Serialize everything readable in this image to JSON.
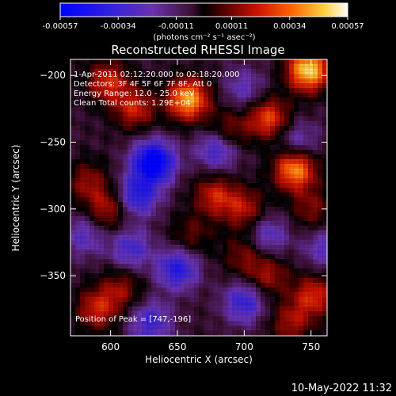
{
  "chart_data": {
    "type": "heatmap",
    "title": "Reconstructed RHESSI Image",
    "xlabel": "Heliocentric X (arcsec)",
    "ylabel": "Heliocentric Y (arcsec)",
    "xlim": [
      570,
      762
    ],
    "ylim": [
      -395,
      -188
    ],
    "x_ticks": [
      600,
      650,
      700,
      750
    ],
    "y_ticks": [
      -200,
      -250,
      -300,
      -350
    ],
    "colorbar": {
      "range": [
        -0.00057,
        0.00057
      ],
      "ticks": [
        -0.00057,
        -0.00034,
        -0.00011,
        0.00011,
        0.00034,
        0.00057
      ],
      "tick_labels": [
        "-0.00057",
        "-0.00034",
        "-0.00011",
        "0.00011",
        "0.00034",
        "0.00057"
      ],
      "units": "(photons cm⁻² s⁻¹ asec⁻²)"
    },
    "annotations": {
      "time": "1-Apr-2011 02:12:20.000 to 02:18:20.000",
      "detectors": "Detectors: 3F 4F 5F 6F 7F 8F, Att 0",
      "energy": "Energy Range: 12.0 - 25.0 keV",
      "method": "Clean     Total counts: 1.29E+04",
      "peak": "Position of Peak = [747,-196]"
    },
    "footer_timestamp": "10-May-2022 11:32",
    "hot_spots": [
      {
        "x": 748,
        "y": -196,
        "value": 0.00057
      },
      {
        "x": 658,
        "y": -218,
        "value": 0.0005
      },
      {
        "x": 738,
        "y": -270,
        "value": 0.00048
      },
      {
        "x": 718,
        "y": -232,
        "value": 0.00035
      },
      {
        "x": 598,
        "y": -205,
        "value": 0.0003
      },
      {
        "x": 618,
        "y": -225,
        "value": 0.00028
      },
      {
        "x": 688,
        "y": -242,
        "value": 0.00022
      },
      {
        "x": 678,
        "y": -290,
        "value": 0.00028
      },
      {
        "x": 700,
        "y": -300,
        "value": 0.00025
      },
      {
        "x": 598,
        "y": -300,
        "value": 0.00025
      },
      {
        "x": 583,
        "y": -280,
        "value": 0.0002
      },
      {
        "x": 750,
        "y": -300,
        "value": 0.00018
      },
      {
        "x": 752,
        "y": -365,
        "value": 0.0003
      },
      {
        "x": 718,
        "y": -350,
        "value": 0.00022
      },
      {
        "x": 700,
        "y": -335,
        "value": 0.00018
      },
      {
        "x": 590,
        "y": -375,
        "value": 0.00028
      },
      {
        "x": 608,
        "y": -360,
        "value": 0.0002
      },
      {
        "x": 660,
        "y": -320,
        "value": 0.00015
      },
      {
        "x": 735,
        "y": -385,
        "value": 0.00022
      }
    ],
    "cold_spots": [
      {
        "x": 632,
        "y": -265,
        "value": -0.00057
      },
      {
        "x": 620,
        "y": -290,
        "value": -0.00035
      },
      {
        "x": 680,
        "y": -255,
        "value": -0.0003
      },
      {
        "x": 650,
        "y": -345,
        "value": -0.00035
      },
      {
        "x": 700,
        "y": -370,
        "value": -0.0003
      },
      {
        "x": 630,
        "y": -385,
        "value": -0.00028
      },
      {
        "x": 718,
        "y": -320,
        "value": -0.00022
      },
      {
        "x": 615,
        "y": -330,
        "value": -0.00025
      },
      {
        "x": 740,
        "y": -250,
        "value": -0.0002
      },
      {
        "x": 700,
        "y": -210,
        "value": -0.00018
      },
      {
        "x": 580,
        "y": -320,
        "value": -0.0002
      },
      {
        "x": 760,
        "y": -330,
        "value": -0.0002
      }
    ]
  }
}
